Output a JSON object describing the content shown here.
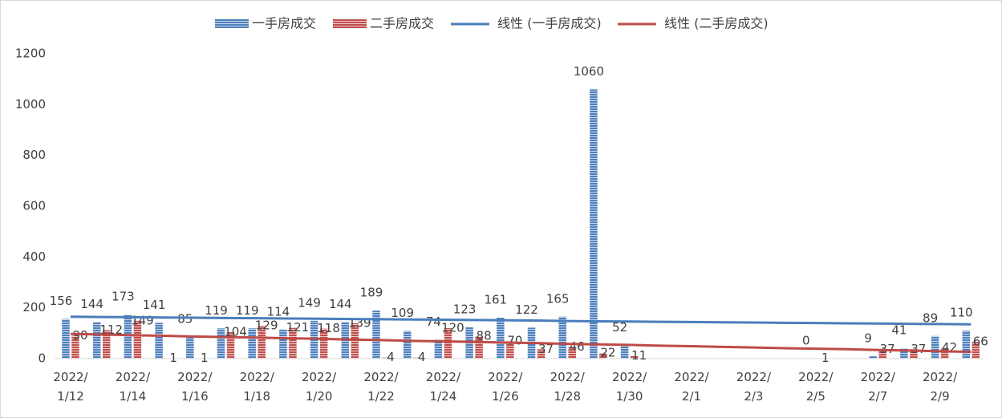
{
  "chart_data": {
    "type": "bar",
    "categories": [
      "2022/1/12",
      null,
      "2022/1/14",
      null,
      "2022/1/16",
      null,
      "2022/1/18",
      null,
      "2022/1/20",
      null,
      "2022/1/22",
      null,
      "2022/1/24",
      null,
      "2022/1/26",
      null,
      "2022/1/28",
      null,
      "2022/1/30",
      null,
      "2022/2/1",
      null,
      "2022/2/3",
      null,
      "2022/2/5",
      null,
      "2022/2/7",
      null,
      "2022/2/9",
      null
    ],
    "series": [
      {
        "name": "一手房成交",
        "type": "bar",
        "color": "#4f81bd",
        "data_labels": true,
        "values": [
          156,
          144,
          173,
          141,
          85,
          119,
          119,
          114,
          149,
          144,
          189,
          109,
          74,
          123,
          161,
          122,
          165,
          1060,
          52,
          null,
          null,
          null,
          null,
          null,
          0,
          null,
          9,
          41,
          89,
          110
        ]
      },
      {
        "name": "二手房成交",
        "type": "bar",
        "color": "#c0504d",
        "data_labels": true,
        "values": [
          90,
          112,
          149,
          1,
          1,
          104,
          129,
          121,
          118,
          139,
          4,
          4,
          120,
          88,
          70,
          37,
          46,
          22,
          11,
          null,
          null,
          null,
          null,
          null,
          1,
          null,
          37,
          37,
          42,
          66
        ]
      },
      {
        "name": "线性 (一手房成交)",
        "type": "line",
        "color": "#4a7ebb",
        "values": [
          165,
          164,
          163,
          162,
          161,
          160,
          159,
          158,
          157,
          156,
          155,
          154,
          153,
          152,
          151,
          150,
          148,
          147,
          146,
          145,
          144,
          143,
          142,
          141,
          140,
          139,
          138,
          137,
          136,
          135
        ]
      },
      {
        "name": "线性 (二手房成交)",
        "type": "line",
        "color": "#be4b48",
        "values": [
          97,
          95,
          92,
          90,
          87,
          85,
          83,
          80,
          78,
          75,
          73,
          70,
          68,
          66,
          63,
          61,
          58,
          56,
          54,
          51,
          49,
          46,
          44,
          41,
          39,
          37,
          34,
          32,
          29,
          27
        ]
      }
    ],
    "ylim": [
      0,
      1200
    ],
    "yticks": [
      0,
      200,
      400,
      600,
      800,
      1000,
      1200
    ],
    "grid": false,
    "legend": "top"
  }
}
